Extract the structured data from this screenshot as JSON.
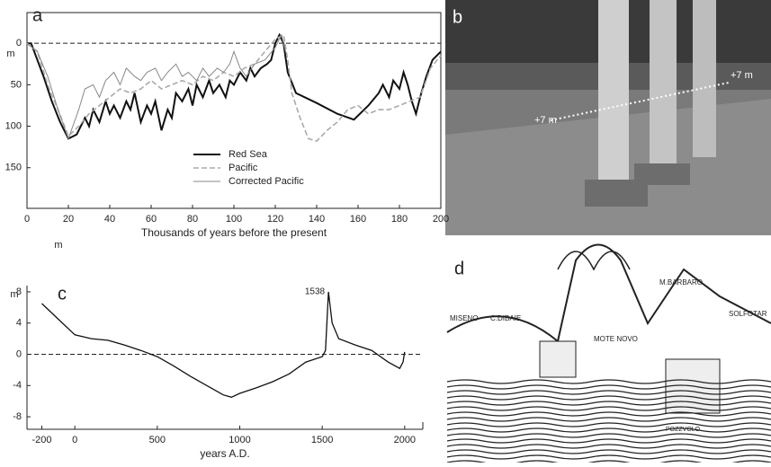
{
  "chart_data": [
    {
      "type": "line",
      "panel_label": "a",
      "x_label": "Thousands of years before the present",
      "y_label": "m",
      "xlim": [
        0,
        200
      ],
      "xticks": [
        0,
        20,
        40,
        60,
        80,
        100,
        120,
        140,
        160,
        180,
        200
      ],
      "ylim": [
        -37,
        199
      ],
      "y_inverted": true,
      "yticks": [
        0,
        50,
        100,
        150
      ],
      "reference_line": 0,
      "frame": true,
      "series": [
        {
          "name": "Red Sea",
          "color": "#111111",
          "width": 2,
          "style": "solid",
          "x": [
            0,
            2,
            5,
            8,
            12,
            16,
            20,
            24,
            28,
            30,
            32,
            35,
            38,
            40,
            42,
            45,
            48,
            50,
            52,
            55,
            58,
            60,
            62,
            65,
            68,
            70,
            72,
            75,
            78,
            80,
            82,
            85,
            88,
            90,
            93,
            96,
            98,
            100,
            103,
            106,
            108,
            110,
            113,
            116,
            118,
            120,
            122,
            124,
            126,
            130,
            140,
            150,
            158,
            165,
            170,
            172,
            175,
            177,
            180,
            182,
            184,
            186,
            188,
            190,
            193,
            196,
            200
          ],
          "values": [
            0,
            0,
            20,
            40,
            70,
            95,
            115,
            110,
            90,
            100,
            80,
            95,
            70,
            85,
            75,
            90,
            70,
            80,
            60,
            95,
            75,
            85,
            70,
            105,
            80,
            90,
            60,
            70,
            55,
            75,
            50,
            65,
            45,
            60,
            50,
            65,
            45,
            50,
            35,
            45,
            30,
            40,
            30,
            25,
            20,
            0,
            -10,
            0,
            35,
            60,
            72,
            85,
            92,
            75,
            60,
            50,
            65,
            45,
            55,
            35,
            50,
            70,
            85,
            65,
            40,
            20,
            10
          ]
        },
        {
          "name": "Pacific",
          "color": "#aaaaaa",
          "width": 1.6,
          "style": "dashed",
          "x": [
            0,
            5,
            10,
            15,
            20,
            25,
            30,
            35,
            40,
            45,
            50,
            55,
            60,
            65,
            70,
            75,
            80,
            85,
            90,
            95,
            100,
            105,
            110,
            115,
            120,
            124,
            126,
            128,
            132,
            136,
            140,
            145,
            150,
            155,
            160,
            165,
            170,
            175,
            180,
            185,
            190,
            195,
            200
          ],
          "values": [
            0,
            10,
            50,
            80,
            112,
            100,
            85,
            75,
            65,
            55,
            60,
            55,
            45,
            55,
            50,
            45,
            50,
            40,
            45,
            35,
            40,
            30,
            25,
            10,
            -5,
            -10,
            20,
            60,
            90,
            115,
            118,
            105,
            95,
            80,
            75,
            85,
            80,
            80,
            75,
            70,
            65,
            30,
            15
          ]
        },
        {
          "name": "Corrected Pacific",
          "color": "#888888",
          "width": 1,
          "style": "solid",
          "x": [
            0,
            5,
            10,
            15,
            20,
            25,
            28,
            32,
            35,
            38,
            42,
            45,
            48,
            52,
            55,
            58,
            62,
            65,
            68,
            72,
            75,
            78,
            82,
            85,
            88,
            92,
            95,
            98,
            100,
            103,
            106,
            110,
            115,
            120,
            123,
            125
          ],
          "values": [
            0,
            10,
            40,
            80,
            115,
            80,
            55,
            50,
            65,
            45,
            35,
            50,
            30,
            40,
            45,
            35,
            30,
            45,
            35,
            25,
            40,
            35,
            45,
            30,
            40,
            30,
            35,
            25,
            10,
            30,
            40,
            25,
            20,
            5,
            -10,
            10
          ]
        }
      ]
    },
    {
      "type": "line",
      "panel_label": "c",
      "x_label": "years A.D.",
      "y_label": "m",
      "y_unit": "m",
      "peak_label": "1538",
      "xlim": [
        -290,
        2110
      ],
      "xticks": [
        -200,
        0,
        500,
        1000,
        1500,
        2000
      ],
      "ylim": [
        -9.6,
        8.8
      ],
      "yticks": [
        8,
        4,
        0,
        -4,
        -8
      ],
      "reference_line": 0,
      "frame": false,
      "series": [
        {
          "color": "#111111",
          "width": 1.3,
          "style": "solid",
          "x": [
            -200,
            -100,
            0,
            100,
            200,
            300,
            400,
            500,
            600,
            700,
            800,
            900,
            950,
            1000,
            1100,
            1200,
            1300,
            1400,
            1500,
            1520,
            1538,
            1560,
            1600,
            1700,
            1800,
            1900,
            1970,
            1990,
            2000
          ],
          "values": [
            6.5,
            4.5,
            2.5,
            2,
            1.8,
            1.2,
            0.5,
            -0.3,
            -1.5,
            -2.8,
            -4,
            -5.2,
            -5.5,
            -5,
            -4.3,
            -3.5,
            -2.5,
            -1,
            -0.3,
            0.5,
            8,
            4,
            2,
            1.2,
            0.5,
            -1,
            -1.8,
            -1,
            0.3
          ]
        }
      ]
    }
  ],
  "images": [
    {
      "panel_label": "b",
      "annotations": [
        "+7 m",
        "+7 m"
      ]
    },
    {
      "panel_label": "d",
      "annotations": [
        "MISENO",
        "C.DIBAIE",
        "M.BARBARO",
        "SOLFOTAR",
        "MOTE NOVO",
        "POZZVOLO"
      ]
    }
  ]
}
